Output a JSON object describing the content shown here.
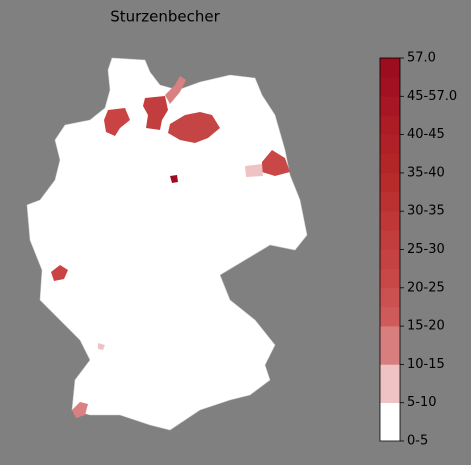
{
  "title": "Sturzenbecher",
  "colorbar": {
    "labels": [
      "0-5",
      "5-10",
      "10-15",
      "15-20",
      "20-25",
      "25-30",
      "30-35",
      "35-40",
      "40-45",
      "45-57.0",
      "57.0"
    ],
    "colors": [
      "#ffffff",
      "#efc3c3",
      "#d97e7e",
      "#cf5a5a",
      "#cb5050",
      "#c84848",
      "#c54242",
      "#c23d3d",
      "#bf3737",
      "#bb3131",
      "#b72b2b",
      "#b32628",
      "#af2127",
      "#ab1c25",
      "#a61623",
      "#a11121",
      "#9c0d1f"
    ]
  }
}
